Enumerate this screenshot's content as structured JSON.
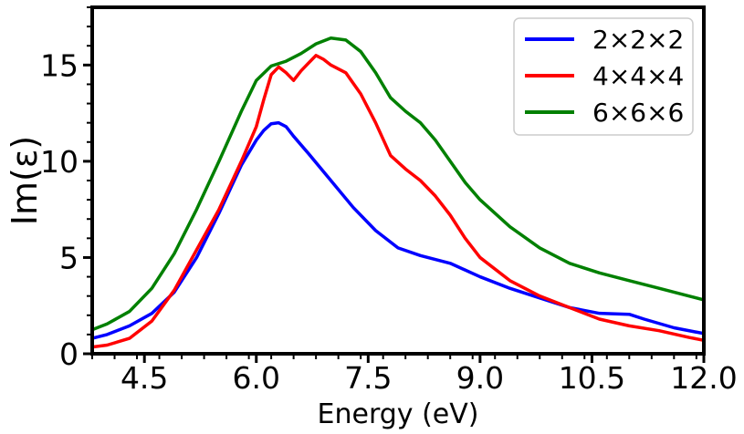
{
  "chart_data": {
    "type": "line",
    "title": "",
    "xlabel": "Energy (eV)",
    "ylabel": "Im(ε)",
    "xlim": [
      3.8,
      12.0
    ],
    "ylim": [
      0,
      18
    ],
    "x_ticks": [
      4.5,
      6.0,
      7.5,
      9.0,
      10.5,
      12.0
    ],
    "x_tick_labels": [
      "4.5",
      "6.0",
      "7.5",
      "9.0",
      "10.5",
      "12.0"
    ],
    "x_minor_step": 0.3,
    "y_ticks": [
      0,
      5,
      10,
      15
    ],
    "y_tick_labels": [
      "0",
      "5",
      "10",
      "15"
    ],
    "y_minor_step": 1,
    "grid": false,
    "legend_position": "top-right",
    "series": [
      {
        "name": "2×2×2",
        "color": "#0000ff",
        "x": [
          3.8,
          4.0,
          4.3,
          4.6,
          4.9,
          5.2,
          5.5,
          5.8,
          6.0,
          6.1,
          6.2,
          6.3,
          6.4,
          6.5,
          6.7,
          7.0,
          7.3,
          7.6,
          7.9,
          8.2,
          8.6,
          9.0,
          9.4,
          9.8,
          10.2,
          10.6,
          11.0,
          11.2,
          11.6,
          12.0
        ],
        "y": [
          0.8,
          1.0,
          1.45,
          2.1,
          3.2,
          5.0,
          7.3,
          9.8,
          11.1,
          11.6,
          11.95,
          12.0,
          11.8,
          11.3,
          10.4,
          9.0,
          7.6,
          6.4,
          5.5,
          5.1,
          4.7,
          4.0,
          3.4,
          2.9,
          2.4,
          2.1,
          2.05,
          1.8,
          1.35,
          1.05
        ]
      },
      {
        "name": "4×4×4",
        "color": "#ff0000",
        "x": [
          3.8,
          4.0,
          4.3,
          4.6,
          4.9,
          5.2,
          5.5,
          5.8,
          6.0,
          6.1,
          6.2,
          6.3,
          6.4,
          6.5,
          6.6,
          6.7,
          6.8,
          6.9,
          7.0,
          7.2,
          7.4,
          7.6,
          7.8,
          8.0,
          8.2,
          8.4,
          8.6,
          8.8,
          9.0,
          9.4,
          9.8,
          10.2,
          10.6,
          11.0,
          11.4,
          11.8,
          12.0
        ],
        "y": [
          0.35,
          0.45,
          0.8,
          1.7,
          3.3,
          5.4,
          7.5,
          10.0,
          11.8,
          13.2,
          14.5,
          14.9,
          14.6,
          14.2,
          14.7,
          15.1,
          15.5,
          15.3,
          15.0,
          14.6,
          13.5,
          12.0,
          10.3,
          9.6,
          9.0,
          8.2,
          7.2,
          6.0,
          5.0,
          3.8,
          3.0,
          2.4,
          1.8,
          1.45,
          1.2,
          0.85,
          0.7
        ]
      },
      {
        "name": "6×6×6",
        "color": "#008000",
        "x": [
          3.8,
          4.0,
          4.3,
          4.6,
          4.9,
          5.2,
          5.5,
          5.8,
          6.0,
          6.2,
          6.4,
          6.6,
          6.8,
          7.0,
          7.2,
          7.4,
          7.6,
          7.8,
          8.0,
          8.2,
          8.4,
          8.6,
          8.8,
          9.0,
          9.4,
          9.8,
          10.2,
          10.6,
          11.0,
          11.4,
          11.8,
          12.0
        ],
        "y": [
          1.25,
          1.55,
          2.2,
          3.4,
          5.2,
          7.5,
          10.0,
          12.6,
          14.2,
          14.95,
          15.2,
          15.6,
          16.1,
          16.4,
          16.3,
          15.7,
          14.6,
          13.3,
          12.6,
          12.0,
          11.1,
          10.0,
          8.9,
          8.0,
          6.6,
          5.5,
          4.7,
          4.2,
          3.8,
          3.4,
          3.0,
          2.8
        ]
      }
    ]
  }
}
